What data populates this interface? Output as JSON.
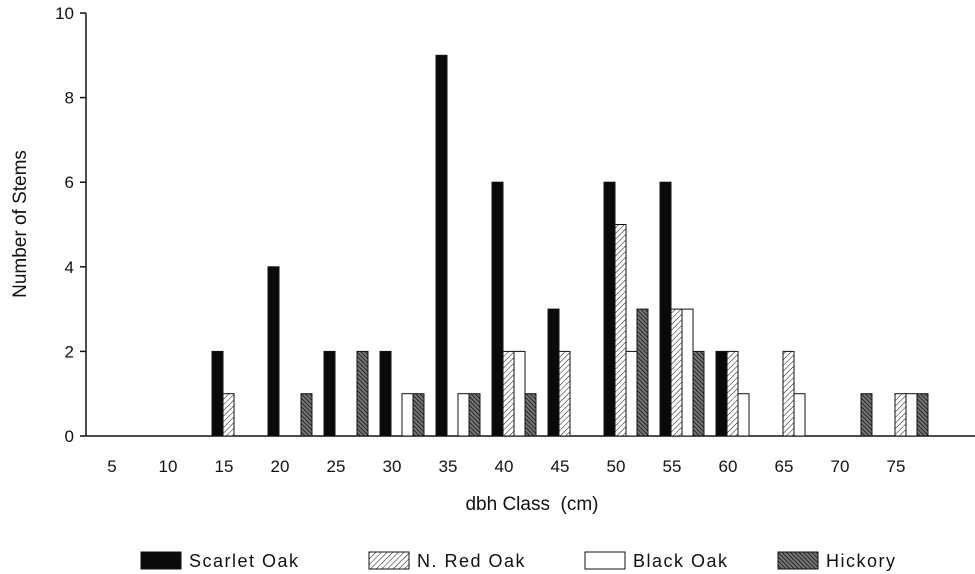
{
  "chart_data": {
    "type": "bar",
    "xlabel": "dbh Class  (cm)",
    "ylabel": "Number of Stems",
    "categories": [
      "5",
      "10",
      "15",
      "20",
      "25",
      "30",
      "35",
      "40",
      "45",
      "50",
      "55",
      "60",
      "65",
      "70",
      "75"
    ],
    "ylim": [
      0,
      10
    ],
    "yticks": [
      0,
      2,
      4,
      6,
      8,
      10
    ],
    "series": [
      {
        "name": "Scarlet Oak",
        "values": [
          0,
          0,
          2,
          4,
          2,
          2,
          9,
          6,
          3,
          6,
          6,
          2,
          0,
          0,
          0
        ]
      },
      {
        "name": "N. Red Oak",
        "values": [
          0,
          0,
          1,
          0,
          0,
          0,
          0,
          2,
          2,
          5,
          3,
          2,
          2,
          0,
          1
        ]
      },
      {
        "name": "Black Oak",
        "values": [
          0,
          0,
          0,
          0,
          0,
          1,
          1,
          2,
          0,
          2,
          3,
          1,
          1,
          0,
          1
        ]
      },
      {
        "name": "Hickory",
        "values": [
          0,
          0,
          0,
          1,
          2,
          1,
          1,
          1,
          0,
          3,
          2,
          0,
          0,
          1,
          1
        ]
      }
    ],
    "legend_position": "bottom",
    "grid": false
  }
}
